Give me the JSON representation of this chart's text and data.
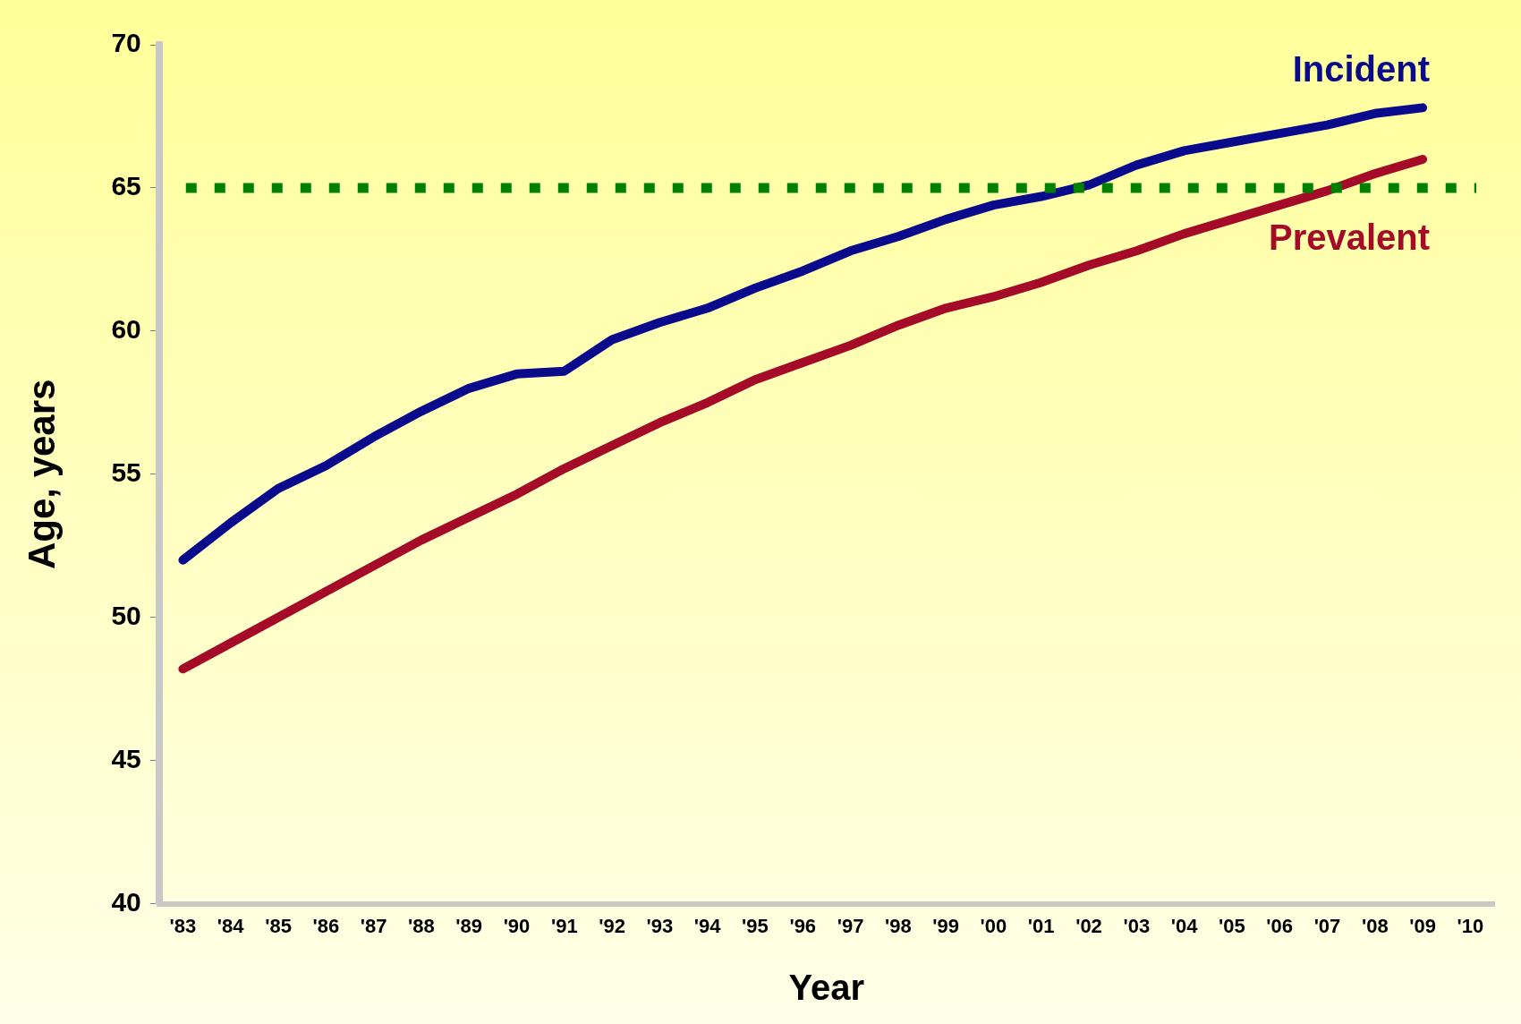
{
  "chart_data": {
    "type": "line",
    "xlabel": "Year",
    "ylabel": "Age, years",
    "categories": [
      "'83",
      "'84",
      "'85",
      "'86",
      "'87",
      "'88",
      "'89",
      "'90",
      "'91",
      "'92",
      "'93",
      "'94",
      "'95",
      "'96",
      "'97",
      "'98",
      "'99",
      "'00",
      "'01",
      "'02",
      "'03",
      "'04",
      "'05",
      "'06",
      "'07",
      "'08",
      "'09",
      "'10"
    ],
    "series": [
      {
        "name": "Incident",
        "color": "#0a0a8c",
        "values": [
          52.0,
          53.3,
          54.5,
          55.3,
          56.3,
          57.2,
          58.0,
          58.5,
          58.6,
          59.7,
          60.3,
          60.8,
          61.5,
          62.1,
          62.8,
          63.3,
          63.9,
          64.4,
          64.7,
          65.1,
          65.8,
          66.3,
          66.6,
          66.9,
          67.2,
          67.6,
          67.8,
          null
        ]
      },
      {
        "name": "Prevalent",
        "color": "#a50a28",
        "values": [
          48.2,
          49.1,
          50.0,
          50.9,
          51.8,
          52.7,
          53.5,
          54.3,
          55.2,
          56.0,
          56.8,
          57.5,
          58.3,
          58.9,
          59.5,
          60.2,
          60.8,
          61.2,
          61.7,
          62.3,
          62.8,
          63.4,
          63.9,
          64.4,
          64.9,
          65.5,
          66.0,
          null
        ]
      }
    ],
    "ylim": [
      40,
      70
    ],
    "yticks": [
      40,
      45,
      50,
      55,
      60,
      65,
      70
    ],
    "grid": false,
    "legend": false,
    "marker": "none",
    "line_style": "solid",
    "ref_lines": [
      {
        "axis": "y",
        "value": 65,
        "color": "#008000",
        "line_style": "dotted"
      }
    ]
  }
}
